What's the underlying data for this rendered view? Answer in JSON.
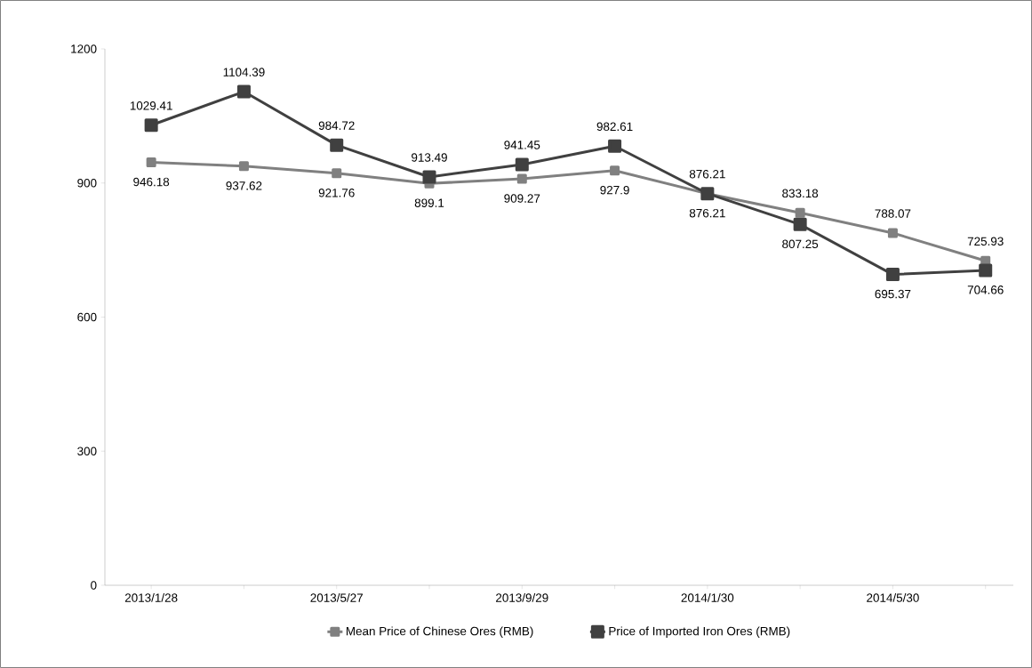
{
  "chart_data": {
    "type": "line",
    "categories": [
      "2013/1/28",
      null,
      "2013/5/27",
      null,
      "2013/9/29",
      null,
      "2014/1/30",
      null,
      "2014/5/30",
      null
    ],
    "series": [
      {
        "name": "Mean Price of Chinese Ores (RMB)",
        "color": "#808080",
        "values": [
          946.18,
          937.62,
          921.76,
          899.1,
          909.27,
          927.9,
          876.21,
          833.18,
          788.07,
          725.93
        ]
      },
      {
        "name": "Price of Imported Iron Ores (RMB)",
        "color": "#404040",
        "values": [
          1029.41,
          1104.39,
          984.72,
          913.49,
          941.45,
          982.61,
          876.21,
          807.25,
          695.37,
          704.66
        ]
      }
    ],
    "ylim": [
      0,
      1200
    ],
    "yticks": [
      0,
      300,
      600,
      900,
      1200
    ],
    "data_labels": true,
    "legend": "bottom",
    "marker": "square",
    "line_style": "solid",
    "grid": false
  }
}
